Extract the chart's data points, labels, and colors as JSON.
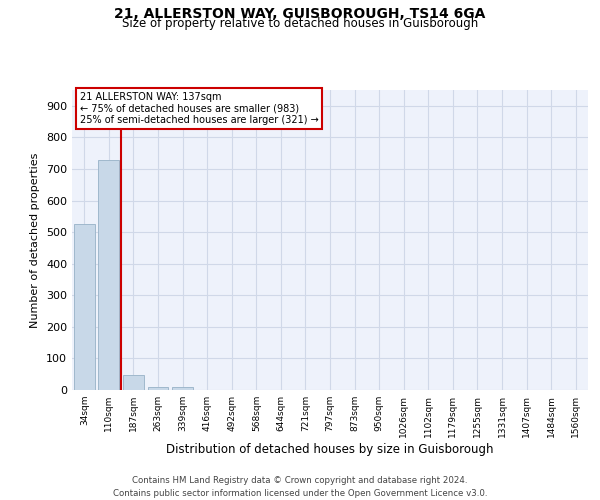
{
  "title1": "21, ALLERSTON WAY, GUISBOROUGH, TS14 6GA",
  "title2": "Size of property relative to detached houses in Guisborough",
  "xlabel": "Distribution of detached houses by size in Guisborough",
  "ylabel": "Number of detached properties",
  "categories": [
    "34sqm",
    "110sqm",
    "187sqm",
    "263sqm",
    "339sqm",
    "416sqm",
    "492sqm",
    "568sqm",
    "644sqm",
    "721sqm",
    "797sqm",
    "873sqm",
    "950sqm",
    "1026sqm",
    "1102sqm",
    "1179sqm",
    "1255sqm",
    "1331sqm",
    "1407sqm",
    "1484sqm",
    "1560sqm"
  ],
  "values": [
    527,
    727,
    47,
    11,
    9,
    0,
    0,
    0,
    0,
    0,
    0,
    0,
    0,
    0,
    0,
    0,
    0,
    0,
    0,
    0,
    0
  ],
  "bar_color": "#c8d8e8",
  "bar_edge_color": "#a0b8cc",
  "vline_x": 1.5,
  "vline_color": "#cc0000",
  "annotation_title": "21 ALLERSTON WAY: 137sqm",
  "annotation_line2": "← 75% of detached houses are smaller (983)",
  "annotation_line3": "25% of semi-detached houses are larger (321) →",
  "annotation_box_color": "#cc0000",
  "grid_color": "#d0d8e8",
  "background_color": "#eef2fb",
  "footer1": "Contains HM Land Registry data © Crown copyright and database right 2024.",
  "footer2": "Contains public sector information licensed under the Open Government Licence v3.0.",
  "ylim": [
    0,
    950
  ],
  "yticks": [
    0,
    100,
    200,
    300,
    400,
    500,
    600,
    700,
    800,
    900
  ]
}
